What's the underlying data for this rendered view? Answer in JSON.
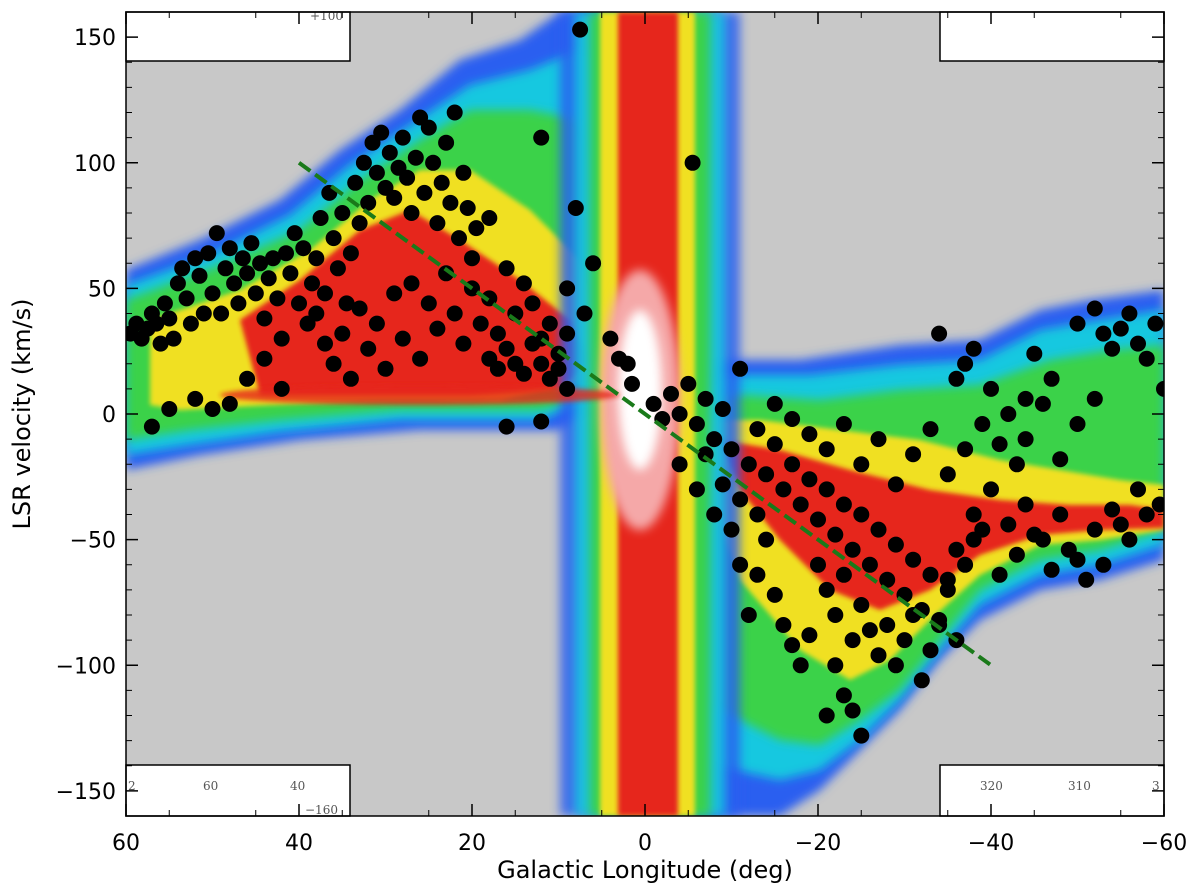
{
  "chart_data": {
    "type": "scatter",
    "title": "",
    "xlabel": "Galactic Longitude (deg)",
    "ylabel": "LSR velocity (km/s)",
    "xlim": [
      60,
      -60
    ],
    "ylim": [
      -160,
      160
    ],
    "x_ticks": [
      60,
      40,
      20,
      0,
      -20,
      -40,
      -60
    ],
    "x_tick_labels": [
      "60",
      "40",
      "20",
      "0",
      "−20",
      "−40",
      "−60"
    ],
    "y_ticks": [
      150,
      100,
      50,
      0,
      -50,
      -100,
      -150
    ],
    "y_tick_labels": [
      "150",
      "100",
      "50",
      "0",
      "−50",
      "−100",
      "−150"
    ],
    "background": "longitude-velocity emission map (contours in blue, cyan, green, yellow, red, white)",
    "fit_line": {
      "style": "dashed",
      "color": "#1a7a1a",
      "x": [
        40,
        -40
      ],
      "y": [
        100,
        -100
      ]
    },
    "inset_labels": {
      "top_left": "+100",
      "bottom_left": [
        "2",
        "60",
        "40",
        "−160"
      ],
      "bottom_right": [
        "320",
        "310",
        "3"
      ]
    },
    "series": [
      {
        "marker": "filled circle",
        "color": "#000000",
        "points": [
          [
            59.5,
            32
          ],
          [
            58.8,
            36
          ],
          [
            58.2,
            30
          ],
          [
            57.5,
            34
          ],
          [
            57,
            40
          ],
          [
            56.5,
            36
          ],
          [
            56,
            28
          ],
          [
            55.5,
            44
          ],
          [
            55,
            38
          ],
          [
            54.5,
            30
          ],
          [
            54,
            52
          ],
          [
            53.5,
            58
          ],
          [
            53,
            46
          ],
          [
            52.5,
            36
          ],
          [
            52,
            62
          ],
          [
            51.5,
            55
          ],
          [
            51,
            40
          ],
          [
            50.5,
            64
          ],
          [
            50,
            48
          ],
          [
            49.5,
            72
          ],
          [
            49,
            40
          ],
          [
            48.5,
            58
          ],
          [
            48,
            66
          ],
          [
            47.5,
            52
          ],
          [
            47,
            44
          ],
          [
            46.5,
            62
          ],
          [
            46,
            56
          ],
          [
            45.5,
            68
          ],
          [
            45,
            48
          ],
          [
            44.5,
            60
          ],
          [
            44,
            38
          ],
          [
            43.5,
            54
          ],
          [
            43,
            62
          ],
          [
            42.5,
            46
          ],
          [
            42,
            30
          ],
          [
            41.5,
            64
          ],
          [
            41,
            56
          ],
          [
            40.5,
            72
          ],
          [
            40,
            44
          ],
          [
            39.5,
            66
          ],
          [
            39,
            36
          ],
          [
            38.5,
            52
          ],
          [
            38,
            62
          ],
          [
            37.5,
            78
          ],
          [
            37,
            48
          ],
          [
            36.5,
            88
          ],
          [
            36,
            70
          ],
          [
            35.5,
            58
          ],
          [
            35,
            80
          ],
          [
            34.5,
            44
          ],
          [
            34,
            64
          ],
          [
            33.5,
            92
          ],
          [
            33,
            76
          ],
          [
            32.5,
            100
          ],
          [
            32,
            84
          ],
          [
            31.5,
            108
          ],
          [
            31,
            96
          ],
          [
            30.5,
            112
          ],
          [
            30,
            90
          ],
          [
            29.5,
            104
          ],
          [
            29,
            86
          ],
          [
            28.5,
            98
          ],
          [
            28,
            110
          ],
          [
            27.5,
            94
          ],
          [
            27,
            80
          ],
          [
            26.5,
            102
          ],
          [
            26,
            118
          ],
          [
            25.5,
            88
          ],
          [
            25,
            114
          ],
          [
            24.5,
            100
          ],
          [
            24,
            76
          ],
          [
            23.5,
            92
          ],
          [
            23,
            108
          ],
          [
            22.5,
            84
          ],
          [
            22,
            120
          ],
          [
            21.5,
            70
          ],
          [
            21,
            96
          ],
          [
            20.5,
            82
          ],
          [
            20,
            62
          ],
          [
            19.5,
            74
          ],
          [
            38,
            40
          ],
          [
            37,
            28
          ],
          [
            36,
            20
          ],
          [
            35,
            32
          ],
          [
            34,
            14
          ],
          [
            33,
            42
          ],
          [
            32,
            26
          ],
          [
            31,
            36
          ],
          [
            30,
            18
          ],
          [
            29,
            48
          ],
          [
            28,
            30
          ],
          [
            27,
            52
          ],
          [
            26,
            22
          ],
          [
            25,
            44
          ],
          [
            24,
            34
          ],
          [
            23,
            56
          ],
          [
            22,
            40
          ],
          [
            21,
            28
          ],
          [
            20,
            50
          ],
          [
            19,
            36
          ],
          [
            18,
            46
          ],
          [
            17,
            32
          ],
          [
            16,
            58
          ],
          [
            15,
            40
          ],
          [
            14,
            52
          ],
          [
            13,
            44
          ],
          [
            12,
            30
          ],
          [
            11,
            36
          ],
          [
            10,
            24
          ],
          [
            9,
            32
          ],
          [
            18,
            22
          ],
          [
            17,
            18
          ],
          [
            16,
            26
          ],
          [
            15,
            20
          ],
          [
            14,
            16
          ],
          [
            13,
            28
          ],
          [
            12,
            20
          ],
          [
            11,
            14
          ],
          [
            10,
            18
          ],
          [
            9,
            10
          ],
          [
            48,
            4
          ],
          [
            46,
            14
          ],
          [
            44,
            22
          ],
          [
            42,
            10
          ],
          [
            50,
            2
          ],
          [
            52,
            6
          ],
          [
            55,
            2
          ],
          [
            57,
            -5
          ],
          [
            16,
            -5
          ],
          [
            12,
            -3
          ],
          [
            8,
            82
          ],
          [
            6,
            60
          ],
          [
            9,
            50
          ],
          [
            7,
            40
          ],
          [
            4,
            30
          ],
          [
            2,
            20
          ],
          [
            12,
            110
          ],
          [
            7.5,
            153
          ],
          [
            -5.5,
            100
          ],
          [
            18,
            78
          ],
          [
            3,
            22
          ],
          [
            1.5,
            12
          ],
          [
            -1,
            4
          ],
          [
            -2,
            -2
          ],
          [
            -3,
            8
          ],
          [
            -4,
            0
          ],
          [
            -5,
            12
          ],
          [
            -6,
            -4
          ],
          [
            -7,
            6
          ],
          [
            -8,
            -10
          ],
          [
            -9,
            2
          ],
          [
            -10,
            -14
          ],
          [
            -11,
            18
          ],
          [
            -12,
            -20
          ],
          [
            -13,
            -6
          ],
          [
            -14,
            -24
          ],
          [
            -15,
            -12
          ],
          [
            -16,
            -30
          ],
          [
            -17,
            -20
          ],
          [
            -18,
            -36
          ],
          [
            -19,
            -26
          ],
          [
            -20,
            -42
          ],
          [
            -21,
            -30
          ],
          [
            -22,
            -48
          ],
          [
            -23,
            -36
          ],
          [
            -24,
            -54
          ],
          [
            -25,
            -40
          ],
          [
            -26,
            -60
          ],
          [
            -27,
            -46
          ],
          [
            -28,
            -66
          ],
          [
            -29,
            -52
          ],
          [
            -30,
            -72
          ],
          [
            -31,
            -58
          ],
          [
            -32,
            -78
          ],
          [
            -33,
            -64
          ],
          [
            -34,
            -84
          ],
          [
            -35,
            -70
          ],
          [
            -36,
            -90
          ],
          [
            -37,
            -60
          ],
          [
            -38,
            -50
          ],
          [
            -20,
            -60
          ],
          [
            -21,
            -70
          ],
          [
            -22,
            -80
          ],
          [
            -23,
            -64
          ],
          [
            -24,
            -90
          ],
          [
            -25,
            -76
          ],
          [
            -26,
            -86
          ],
          [
            -27,
            -96
          ],
          [
            -28,
            -84
          ],
          [
            -29,
            -100
          ],
          [
            -30,
            -90
          ],
          [
            -31,
            -80
          ],
          [
            -32,
            -106
          ],
          [
            -33,
            -94
          ],
          [
            -34,
            -82
          ],
          [
            -22,
            -100
          ],
          [
            -23,
            -112
          ],
          [
            -24,
            -118
          ],
          [
            -25,
            -128
          ],
          [
            -21,
            -120
          ],
          [
            -14,
            -50
          ],
          [
            -13,
            -64
          ],
          [
            -15,
            -72
          ],
          [
            -16,
            -84
          ],
          [
            -17,
            -92
          ],
          [
            -18,
            -100
          ],
          [
            -19,
            -88
          ],
          [
            -12,
            -80
          ],
          [
            -11,
            -60
          ],
          [
            -10,
            -46
          ],
          [
            -8,
            -40
          ],
          [
            -6,
            -30
          ],
          [
            -4,
            -20
          ],
          [
            -9,
            -28
          ],
          [
            -7,
            -16
          ],
          [
            -38,
            -40
          ],
          [
            -40,
            -30
          ],
          [
            -42,
            -44
          ],
          [
            -44,
            -36
          ],
          [
            -46,
            -50
          ],
          [
            -48,
            -40
          ],
          [
            -50,
            -58
          ],
          [
            -52,
            -46
          ],
          [
            -54,
            -38
          ],
          [
            -56,
            -50
          ],
          [
            -58,
            -40
          ],
          [
            -59.5,
            -36
          ],
          [
            -57,
            -30
          ],
          [
            -55,
            -44
          ],
          [
            -53,
            -60
          ],
          [
            -51,
            -66
          ],
          [
            -49,
            -54
          ],
          [
            -47,
            -62
          ],
          [
            -45,
            -48
          ],
          [
            -43,
            -56
          ],
          [
            -41,
            -64
          ],
          [
            -39,
            -46
          ],
          [
            -36,
            -54
          ],
          [
            -35,
            -66
          ],
          [
            -34,
            32
          ],
          [
            -36,
            14
          ],
          [
            -37,
            20
          ],
          [
            -38,
            26
          ],
          [
            -40,
            10
          ],
          [
            -42,
            0
          ],
          [
            -44,
            -10
          ],
          [
            -46,
            4
          ],
          [
            -48,
            -18
          ],
          [
            -50,
            -4
          ],
          [
            -52,
            6
          ],
          [
            -54,
            26
          ],
          [
            -55,
            34
          ],
          [
            -56,
            40
          ],
          [
            -57,
            28
          ],
          [
            -58,
            22
          ],
          [
            -59,
            36
          ],
          [
            -60,
            10
          ],
          [
            -52,
            42
          ],
          [
            -50,
            36
          ],
          [
            -53,
            32
          ],
          [
            -45,
            24
          ],
          [
            -47,
            14
          ],
          [
            -44,
            6
          ],
          [
            -41,
            -12
          ],
          [
            -43,
            -20
          ],
          [
            -39,
            -4
          ],
          [
            -37,
            -14
          ],
          [
            -35,
            -24
          ],
          [
            -33,
            -6
          ],
          [
            -31,
            -16
          ],
          [
            -29,
            -28
          ],
          [
            -27,
            -10
          ],
          [
            -25,
            -20
          ],
          [
            -23,
            -4
          ],
          [
            -21,
            -14
          ],
          [
            -19,
            -8
          ],
          [
            -17,
            -2
          ],
          [
            -15,
            4
          ],
          [
            -13,
            -40
          ],
          [
            -11,
            -34
          ]
        ]
      }
    ]
  }
}
